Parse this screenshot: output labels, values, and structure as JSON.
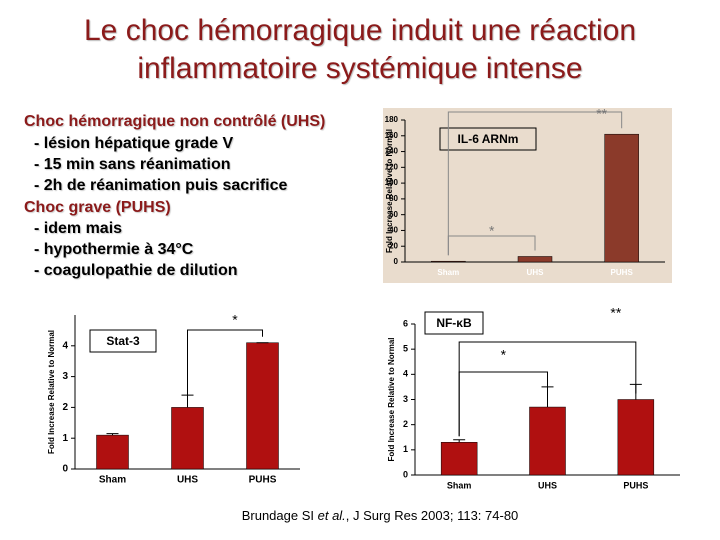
{
  "title": [
    "Le choc hémorragique induit une réaction",
    "inflammatoire systémique intense"
  ],
  "lines": [
    "Choc hémorragique non contrôlé (UHS)",
    "- lésion hépatique grade V",
    "- 15 min sans réanimation",
    "- 2h de réanimation puis sacrifice",
    "Choc grave (PUHS)",
    "- idem mais",
    "- hypothermie à 34°C",
    "- coagulopathie de dilution"
  ],
  "citation": [
    "Brundage SI ",
    "et al.",
    ", J Surg Res 2003; 113: 74-80"
  ],
  "chart_data": [
    {
      "type": "bar",
      "title": "IL-6 ARNm",
      "y_label": "Fold Increase Relative to Normal",
      "categories": [
        "Sham",
        "UHS",
        "PUHS"
      ],
      "values": [
        1,
        7,
        162
      ],
      "color": "#8b3a2a",
      "background": "#e9dccd",
      "ylim": [
        0,
        180
      ],
      "yticks": [
        0,
        20,
        40,
        60,
        80,
        100,
        120,
        140,
        160,
        180
      ],
      "annotations": [
        "*",
        "**"
      ]
    },
    {
      "type": "bar",
      "title": "Stat-3",
      "y_label": "Fold Increase Relative to Normal",
      "categories": [
        "Sham",
        "UHS",
        "PUHS"
      ],
      "values": [
        1.1,
        2.0,
        4.1
      ],
      "errors": [
        0.05,
        0.4,
        0
      ],
      "color": "#b01010",
      "ylim": [
        0,
        5
      ],
      "yticks": [
        0,
        1,
        2,
        3,
        4
      ],
      "annotations": [
        "*"
      ]
    },
    {
      "type": "bar",
      "title": "NF-κB",
      "y_label": "Fold Increase Relative to Normal",
      "categories": [
        "Sham",
        "UHS",
        "PUHS"
      ],
      "values": [
        1.3,
        2.7,
        3.0
      ],
      "errors": [
        0.1,
        0.8,
        0.6
      ],
      "color": "#b01010",
      "ylim": [
        0,
        6
      ],
      "yticks": [
        0,
        1,
        2,
        3,
        4,
        5,
        6
      ],
      "annotations": [
        "*",
        "**"
      ]
    }
  ]
}
